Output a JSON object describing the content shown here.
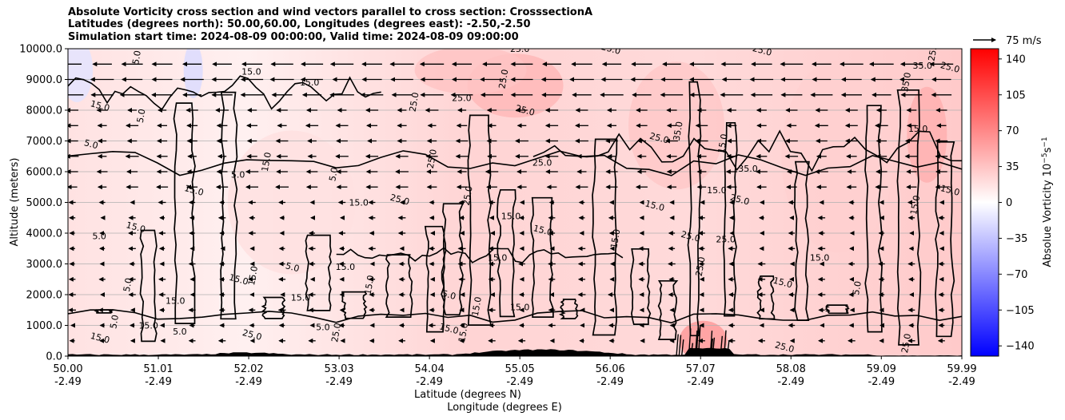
{
  "header": {
    "title_line1": "Absolute Vorticity cross section and wind vectors parallel to cross section: CrosssectionA",
    "title_line2": "Latitudes (degrees north): 50.00,60.00, Longitudes (degrees east): -2.50,-2.50",
    "title_line3": "Simulation start time: 2024-08-09 00:00:00, Valid time: 2024-08-09 09:00:00"
  },
  "chart_data": {
    "type": "heatmap",
    "title": "Absolute Vorticity cross section and wind vectors parallel to cross section: CrosssectionA",
    "ylabel": "Altitude (meters)",
    "xlabel_line1": "Latitude (degrees N)",
    "xlabel_line2": "Longitude (degrees E)",
    "ylim": [
      0,
      10000
    ],
    "xlim": [
      50.0,
      59.99
    ],
    "y_ticks": [
      "0.0",
      "1000.0",
      "2000.0",
      "3000.0",
      "4000.0",
      "5000.0",
      "6000.0",
      "7000.0",
      "8000.0",
      "9000.0",
      "10000.0"
    ],
    "y_tick_values": [
      0,
      1000,
      2000,
      3000,
      4000,
      5000,
      6000,
      7000,
      8000,
      9000,
      10000
    ],
    "x_ticks_lat": [
      "50.00",
      "51.01",
      "52.02",
      "53.03",
      "54.04",
      "55.05",
      "56.06",
      "57.07",
      "58.08",
      "59.09",
      "59.99"
    ],
    "x_ticks_lon": [
      "-2.49",
      "-2.49",
      "-2.49",
      "-2.49",
      "-2.49",
      "-2.49",
      "-2.49",
      "-2.49",
      "-2.49",
      "-2.49",
      "-2.49"
    ],
    "x_tick_values": [
      50.0,
      51.01,
      52.02,
      53.03,
      54.04,
      55.05,
      56.06,
      57.07,
      58.08,
      59.09,
      59.99
    ],
    "grid": "horizontal",
    "colorbar": {
      "label": "Absolue Vorticity 10",
      "label_exp": "−5",
      "label_unit": "s",
      "label_unit_exp": "−1",
      "ticks": [
        "140",
        "105",
        "70",
        "35",
        "0",
        "−35",
        "−70",
        "−105",
        "−140"
      ],
      "tick_values": [
        140,
        105,
        70,
        35,
        0,
        -35,
        -70,
        -105,
        -140
      ],
      "range": [
        -150,
        150
      ],
      "colormap": "bwr",
      "color_low": "#0000ff",
      "color_mid": "#ffffff",
      "color_high": "#ff0000"
    },
    "quiver_key": {
      "label": "75 m/s",
      "speed": 75
    },
    "contour_levels": [
      5.0,
      15.0,
      25.0,
      35.0
    ],
    "contour_labels": [
      {
        "t": "5.0",
        "lat": 50.8,
        "alt": 9700
      },
      {
        "t": "15.0",
        "lat": 52.05,
        "alt": 9150
      },
      {
        "t": "15.0",
        "lat": 50.35,
        "alt": 8050
      },
      {
        "t": "5.0",
        "lat": 50.85,
        "alt": 7800
      },
      {
        "t": "15.0",
        "lat": 52.7,
        "alt": 8800
      },
      {
        "t": "5.0",
        "lat": 50.25,
        "alt": 6800
      },
      {
        "t": "15.0",
        "lat": 52.25,
        "alt": 6300
      },
      {
        "t": "5.0",
        "lat": 51.9,
        "alt": 5800
      },
      {
        "t": "15.0",
        "lat": 51.4,
        "alt": 5300
      },
      {
        "t": "5.0",
        "lat": 53.0,
        "alt": 5900
      },
      {
        "t": "15.0",
        "lat": 53.25,
        "alt": 4900
      },
      {
        "t": "25.0",
        "lat": 53.7,
        "alt": 5000
      },
      {
        "t": "25.0",
        "lat": 53.9,
        "alt": 8250
      },
      {
        "t": "25.0",
        "lat": 54.4,
        "alt": 8300
      },
      {
        "t": "25.0",
        "lat": 55.1,
        "alt": 7900
      },
      {
        "t": "25.0",
        "lat": 54.9,
        "alt": 9000
      },
      {
        "t": "25.0",
        "lat": 55.05,
        "alt": 9900
      },
      {
        "t": "25.0",
        "lat": 56.06,
        "alt": 9900
      },
      {
        "t": "25.0",
        "lat": 54.1,
        "alt": 6400
      },
      {
        "t": "25.0",
        "lat": 55.3,
        "alt": 6200
      },
      {
        "t": "25.0",
        "lat": 56.6,
        "alt": 7000
      },
      {
        "t": "25.0",
        "lat": 54.5,
        "alt": 5200
      },
      {
        "t": "15.0",
        "lat": 54.95,
        "alt": 4450
      },
      {
        "t": "15.0",
        "lat": 55.3,
        "alt": 4000
      },
      {
        "t": "15.0",
        "lat": 56.15,
        "alt": 3800
      },
      {
        "t": "15.0",
        "lat": 54.8,
        "alt": 3100
      },
      {
        "t": "15.0",
        "lat": 56.55,
        "alt": 4800
      },
      {
        "t": "35.0",
        "lat": 56.85,
        "alt": 7300
      },
      {
        "t": "15.0",
        "lat": 57.25,
        "alt": 5300
      },
      {
        "t": "25.0",
        "lat": 57.5,
        "alt": 5000
      },
      {
        "t": "15.0",
        "lat": 57.35,
        "alt": 6900
      },
      {
        "t": "35.0",
        "lat": 57.6,
        "alt": 6000
      },
      {
        "t": "25.0",
        "lat": 56.95,
        "alt": 3800
      },
      {
        "t": "25.0",
        "lat": 57.1,
        "alt": 2900
      },
      {
        "t": "25.0",
        "lat": 57.35,
        "alt": 3700
      },
      {
        "t": "25.0",
        "lat": 57.75,
        "alt": 9850
      },
      {
        "t": "25.0",
        "lat": 59.7,
        "alt": 9900
      },
      {
        "t": "35.0",
        "lat": 59.55,
        "alt": 9350
      },
      {
        "t": "25.0",
        "lat": 59.85,
        "alt": 9300
      },
      {
        "t": "35.0",
        "lat": 59.4,
        "alt": 8900
      },
      {
        "t": "15.0",
        "lat": 59.5,
        "alt": 7300
      },
      {
        "t": "15.0",
        "lat": 59.85,
        "alt": 5300
      },
      {
        "t": "15.0",
        "lat": 59.5,
        "alt": 4900
      },
      {
        "t": "15.0",
        "lat": 58.4,
        "alt": 3100
      },
      {
        "t": "15.0",
        "lat": 57.98,
        "alt": 2300
      },
      {
        "t": "5.0",
        "lat": 58.85,
        "alt": 2200
      },
      {
        "t": "5.0",
        "lat": 50.35,
        "alt": 3800
      },
      {
        "t": "15.0",
        "lat": 50.75,
        "alt": 4100
      },
      {
        "t": "5.0",
        "lat": 50.7,
        "alt": 2300
      },
      {
        "t": "15.0",
        "lat": 51.2,
        "alt": 1700
      },
      {
        "t": "15.0",
        "lat": 51.9,
        "alt": 2400
      },
      {
        "t": "15.0",
        "lat": 52.1,
        "alt": 2600
      },
      {
        "t": "15.0",
        "lat": 52.6,
        "alt": 1800
      },
      {
        "t": "5.0",
        "lat": 52.5,
        "alt": 2800
      },
      {
        "t": "15.0",
        "lat": 53.4,
        "alt": 2300
      },
      {
        "t": "15.0",
        "lat": 53.1,
        "alt": 2800
      },
      {
        "t": "5.0",
        "lat": 54.25,
        "alt": 1900
      },
      {
        "t": "15.0",
        "lat": 54.6,
        "alt": 1600
      },
      {
        "t": "15.0",
        "lat": 55.05,
        "alt": 1500
      },
      {
        "t": "15.0",
        "lat": 54.25,
        "alt": 800
      },
      {
        "t": "15.0",
        "lat": 54.45,
        "alt": 750
      },
      {
        "t": "15.0",
        "lat": 50.9,
        "alt": 900
      },
      {
        "t": "15.0",
        "lat": 50.35,
        "alt": 500
      },
      {
        "t": "5.0",
        "lat": 50.55,
        "alt": 1100
      },
      {
        "t": "5.0",
        "lat": 51.25,
        "alt": 700
      },
      {
        "t": "25.0",
        "lat": 52.05,
        "alt": 600
      },
      {
        "t": "25.0",
        "lat": 53.03,
        "alt": 750
      },
      {
        "t": "5.0",
        "lat": 52.85,
        "alt": 850
      },
      {
        "t": "25.0",
        "lat": 58.0,
        "alt": 200
      },
      {
        "t": "25.0",
        "lat": 59.4,
        "alt": 400
      }
    ],
    "wind_vector_direction": "westward (toward lower latitude)"
  }
}
